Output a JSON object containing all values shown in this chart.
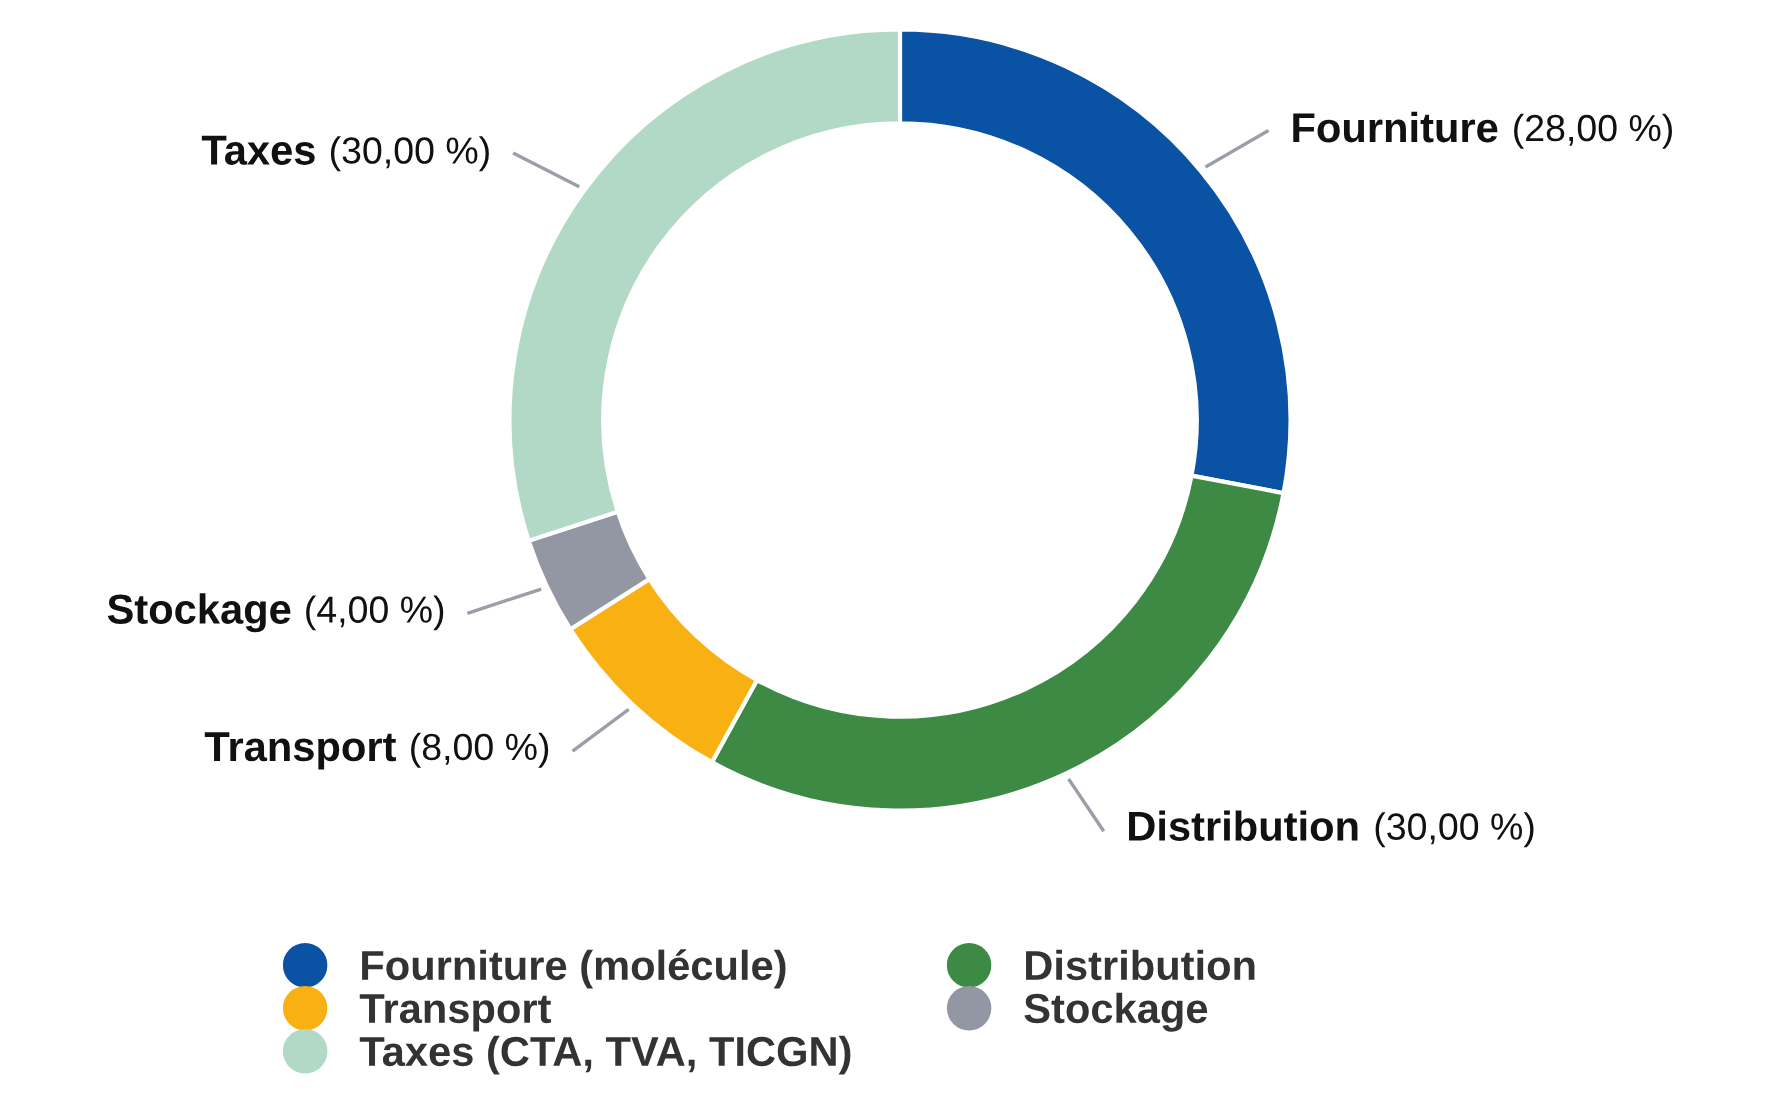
{
  "chart_data": {
    "type": "donut",
    "categories": [
      "Fourniture (molécule)",
      "Distribution",
      "Transport",
      "Stockage",
      "Taxes (CTA, TVA, TICGN)"
    ],
    "values": [
      28,
      30,
      8,
      4,
      30
    ],
    "colors": [
      "#0a53a4",
      "#3c8a44",
      "#f9b013",
      "#9397a3",
      "#b1d9c5"
    ],
    "value_labels": [
      "(28,00 %)",
      "(30,00 %)",
      "(8,00 %)",
      "(4,00 %)",
      "(30,00 %)"
    ],
    "annotations": [
      "Fourniture",
      "Distribution",
      "Transport",
      "Stockage",
      "Taxes"
    ],
    "legend": "bottom"
  }
}
